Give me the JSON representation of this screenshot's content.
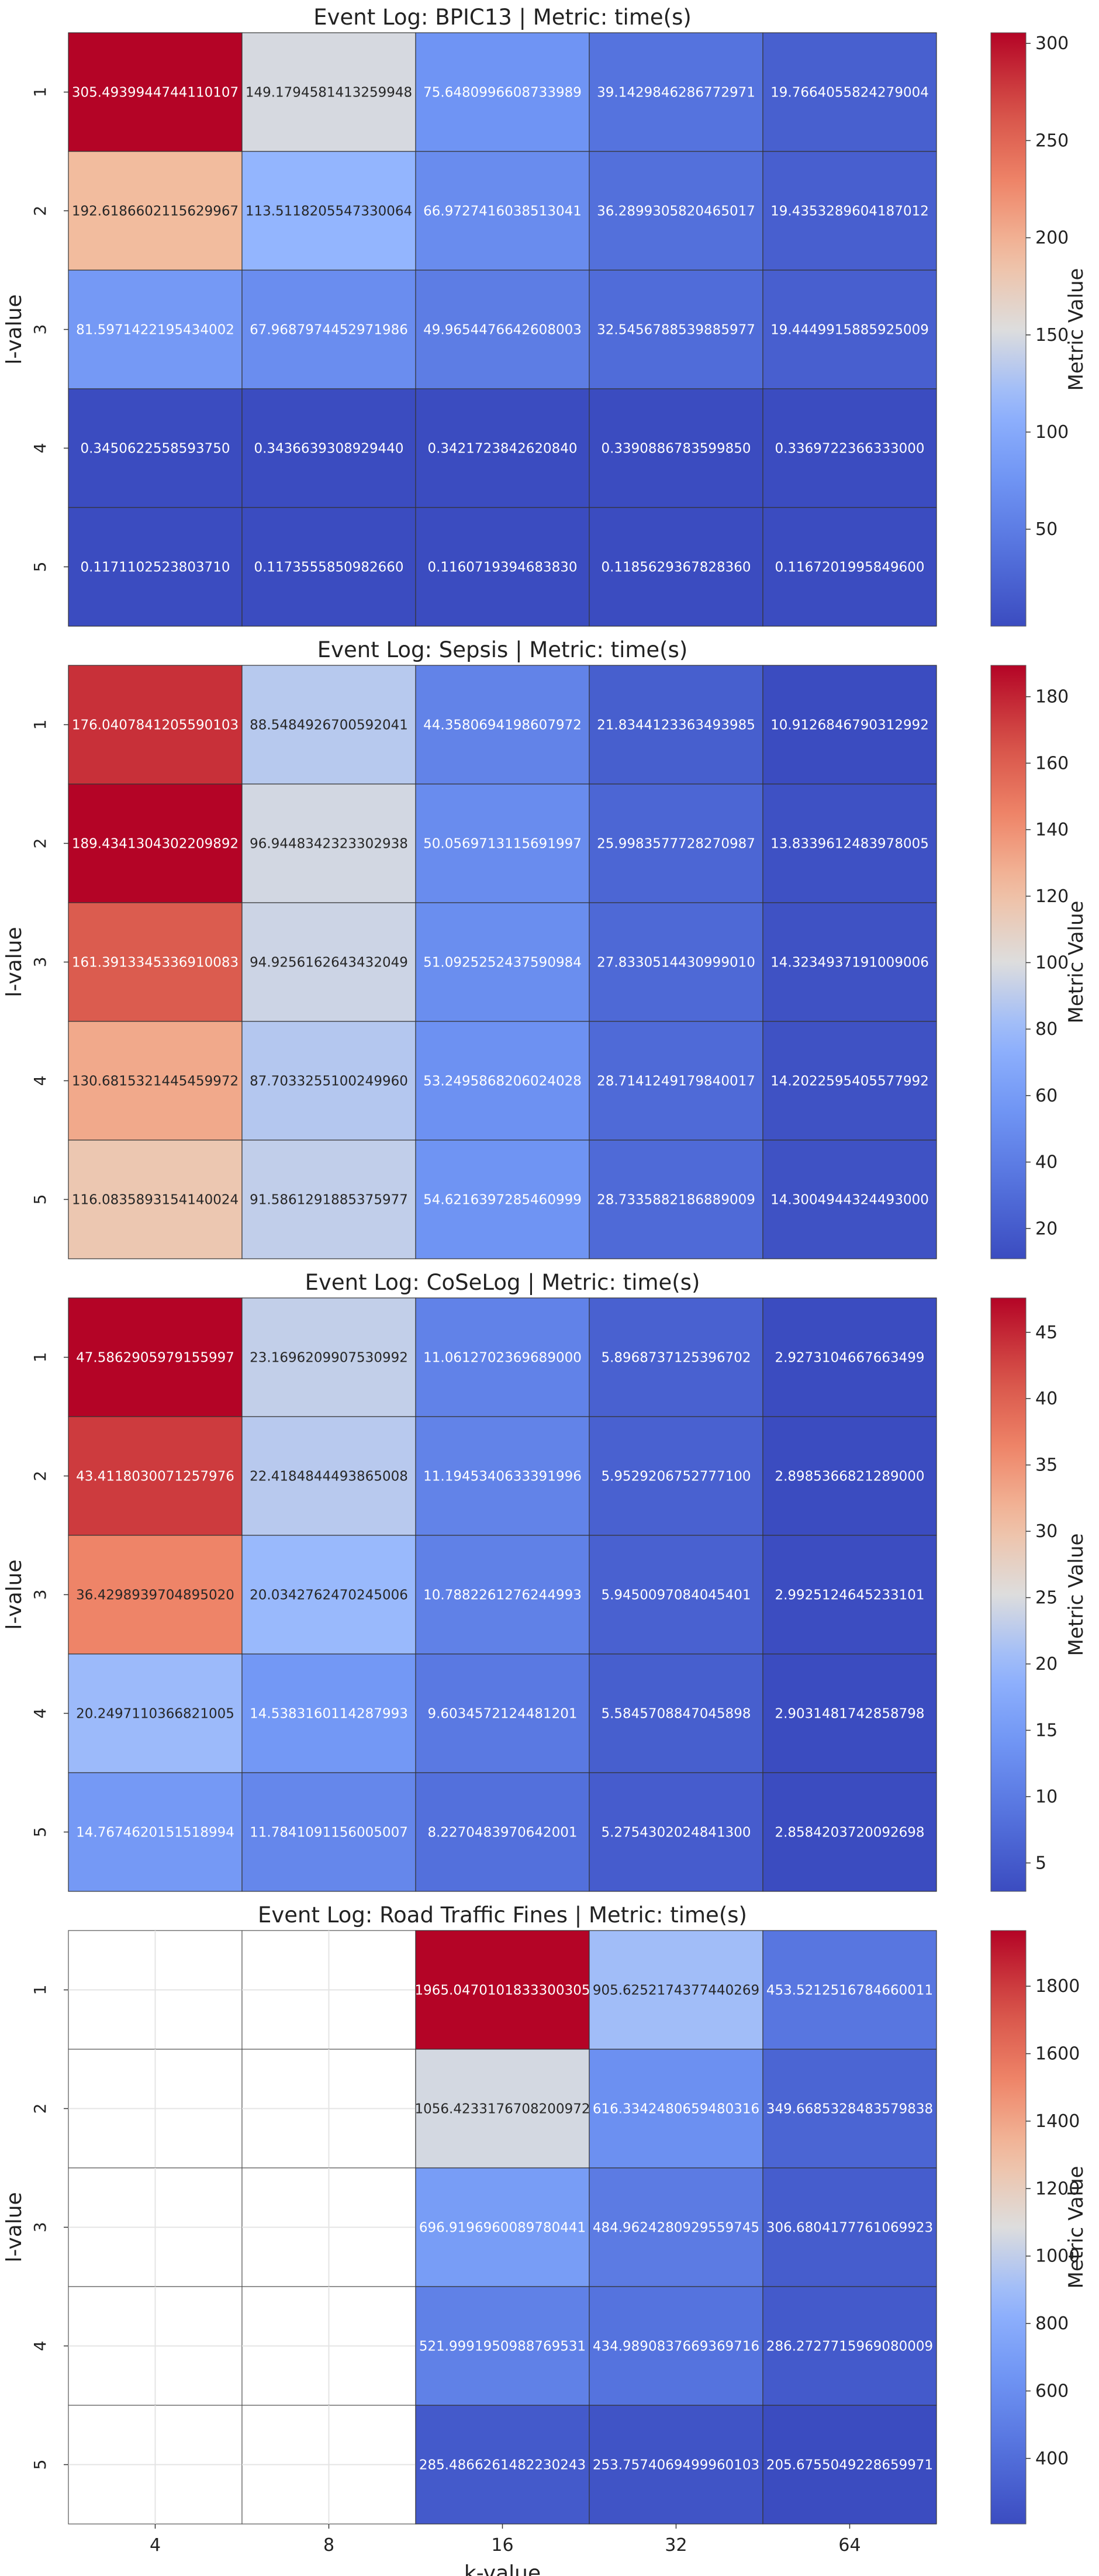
{
  "chart_data": [
    {
      "type": "heatmap",
      "title": "Event Log: BPIC13 | Metric: time(s)",
      "xlabel": "",
      "ylabel": "l-value",
      "x_categories": [
        "4",
        "8",
        "16",
        "32",
        "64"
      ],
      "y_categories": [
        "1",
        "2",
        "3",
        "4",
        "5"
      ],
      "values": [
        [
          305.493994474411,
          149.179458141326,
          75.6480996608734,
          39.1429846286773,
          19.7664055824279
        ],
        [
          192.618660211563,
          113.511820554733,
          66.9727416038513,
          36.2899305820465,
          19.4353289604187
        ],
        [
          81.5971422195434,
          67.9687974452972,
          49.9654476642608,
          32.5456788539886,
          19.4449915885925
        ],
        [
          0.345062255859375,
          0.343663930892944,
          0.342172384262084,
          0.339088678359985,
          0.3369722366333
        ],
        [
          0.117110252380371,
          0.117355585098266,
          0.116071939468383,
          0.118562936782836,
          0.11672019958496
        ]
      ],
      "labels": [
        [
          "305.4939944744110107",
          "149.1794581413259948",
          "75.6480996608733989",
          "39.1429846286772971",
          "19.7664055824279004"
        ],
        [
          "192.6186602115629967",
          "113.5118205547330064",
          "66.9727416038513041",
          "36.2899305820465017",
          "19.4353289604187012"
        ],
        [
          "81.5971422195434002",
          "67.9687974452971986",
          "49.9654476642608003",
          "32.5456788539885977",
          "19.4449915885925009"
        ],
        [
          "0.3450622558593750",
          "0.3436639308929440",
          "0.3421723842620840",
          "0.3390886783599850",
          "0.3369722366333000"
        ],
        [
          "0.1171102523803710",
          "0.1173555850982660",
          "0.1160719394683830",
          "0.1185629367828360",
          "0.1167201995849600"
        ]
      ],
      "colorbar": {
        "label": "Metric Value",
        "min": 0.116,
        "max": 305.49,
        "ticks": [
          "50",
          "100",
          "150",
          "200",
          "250",
          "300"
        ],
        "tick_values": [
          50,
          100,
          150,
          200,
          250,
          300
        ]
      }
    },
    {
      "type": "heatmap",
      "title": "Event Log: Sepsis | Metric: time(s)",
      "xlabel": "",
      "ylabel": "l-value",
      "x_categories": [
        "4",
        "8",
        "16",
        "32",
        "64"
      ],
      "y_categories": [
        "1",
        "2",
        "3",
        "4",
        "5"
      ],
      "values": [
        [
          176.040784120559,
          88.5484926700592,
          44.3580694198608,
          21.8344123363494,
          10.9126846790313
        ],
        [
          189.434130430221,
          96.9448342323303,
          50.0569713115692,
          25.9983577728271,
          13.8339612483978
        ],
        [
          161.391334533691,
          94.9256162643432,
          51.0925252437591,
          27.8330514430999,
          14.3234937191009
        ],
        [
          130.681532144546,
          87.703325510025,
          53.2495868206024,
          28.714124917984,
          14.2022595405578
        ],
        [
          116.083589315414,
          91.5861291885376,
          54.6216397285461,
          28.7335882186889,
          14.3004944324493
        ]
      ],
      "labels": [
        [
          "176.0407841205590103",
          "88.5484926700592041",
          "44.3580694198607972",
          "21.8344123363493985",
          "10.9126846790312992"
        ],
        [
          "189.4341304302209892",
          "96.9448342323302938",
          "50.0569713115691997",
          "25.9983577728270987",
          "13.8339612483978005"
        ],
        [
          "161.3913345336910083",
          "94.9256162643432049",
          "51.0925252437590984",
          "27.8330514430999010",
          "14.3234937191009006"
        ],
        [
          "130.6815321445459972",
          "87.7033255100249960",
          "53.2495868206024028",
          "28.7141249179840017",
          "14.2022595405577992"
        ],
        [
          "116.0835893154140024",
          "91.5861291885375977",
          "54.6216397285460999",
          "28.7335882186889009",
          "14.3004944324493000"
        ]
      ],
      "colorbar": {
        "label": "Metric Value",
        "min": 10.91,
        "max": 189.43,
        "ticks": [
          "20",
          "40",
          "60",
          "80",
          "100",
          "120",
          "140",
          "160",
          "180"
        ],
        "tick_values": [
          20,
          40,
          60,
          80,
          100,
          120,
          140,
          160,
          180
        ]
      }
    },
    {
      "type": "heatmap",
      "title": "Event Log: CoSeLog | Metric: time(s)",
      "xlabel": "",
      "ylabel": "l-value",
      "x_categories": [
        "4",
        "8",
        "16",
        "32",
        "64"
      ],
      "y_categories": [
        "1",
        "2",
        "3",
        "4",
        "5"
      ],
      "values": [
        [
          47.5862905979156,
          23.1696209907531,
          11.0612702369689,
          5.89687371253967,
          2.92731046676635
        ],
        [
          43.4118030071258,
          22.4184844493865,
          11.1945340633392,
          5.95292067527771,
          2.8985366821289
        ],
        [
          36.4298939704895,
          20.0342762470245,
          10.7882261276245,
          5.94500970840454,
          2.99251246452331
        ],
        [
          20.2497110366821,
          14.5383160114288,
          9.60345721244812,
          5.58457088470459,
          2.90314817428588
        ],
        [
          14.7674620151519,
          11.7841091156005,
          8.2270483970642,
          5.27543020248413,
          2.85842037200927
        ]
      ],
      "labels": [
        [
          "47.5862905979155997",
          "23.1696209907530992",
          "11.0612702369689000",
          "5.8968737125396702",
          "2.9273104667663499"
        ],
        [
          "43.4118030071257976",
          "22.4184844493865008",
          "11.1945340633391996",
          "5.9529206752777100",
          "2.8985366821289000"
        ],
        [
          "36.4298939704895020",
          "20.0342762470245006",
          "10.7882261276244993",
          "5.9450097084045401",
          "2.9925124645233101"
        ],
        [
          "20.2497110366821005",
          "14.5383160114287993",
          "9.6034572124481201",
          "5.5845708847045898",
          "2.9031481742858798"
        ],
        [
          "14.7674620151518994",
          "11.7841091156005007",
          "8.2270483970642001",
          "5.2754302024841300",
          "2.8584203720092698"
        ]
      ],
      "colorbar": {
        "label": "Metric Value",
        "min": 2.858,
        "max": 47.59,
        "ticks": [
          "5",
          "10",
          "15",
          "20",
          "25",
          "30",
          "35",
          "40",
          "45"
        ],
        "tick_values": [
          5,
          10,
          15,
          20,
          25,
          30,
          35,
          40,
          45
        ]
      }
    },
    {
      "type": "heatmap",
      "title": "Event Log: Road Traffic Fines | Metric: time(s)",
      "xlabel": "k-value",
      "ylabel": "l-value",
      "x_categories": [
        "4",
        "8",
        "16",
        "32",
        "64"
      ],
      "y_categories": [
        "1",
        "2",
        "3",
        "4",
        "5"
      ],
      "values": [
        [
          null,
          null,
          1965.04701018333,
          905.625217437744,
          453.521251678466
        ],
        [
          null,
          null,
          1056.42331767082,
          616.334248065948,
          349.668532848358
        ],
        [
          null,
          null,
          696.919696008978,
          484.962428092956,
          306.680417776107
        ],
        [
          null,
          null,
          521.999195098877,
          434.989083766937,
          286.272771596908
        ],
        [
          null,
          null,
          285.486626148223,
          253.757406949996,
          205.675504922866
        ]
      ],
      "labels": [
        [
          "",
          "",
          "1965.0470101833300305",
          "905.6252174377440269",
          "453.5212516784660011"
        ],
        [
          "",
          "",
          "1056.4233176708200972",
          "616.3342480659480316",
          "349.6685328483579838"
        ],
        [
          "",
          "",
          "696.9196960089780441",
          "484.9624280929559745",
          "306.6804177761069923"
        ],
        [
          "",
          "",
          "521.9991950988769531",
          "434.9890837669369716",
          "286.2727715969080009"
        ],
        [
          "",
          "",
          "285.4866261482230243",
          "253.7574069499960103",
          "205.6755049228659971"
        ]
      ],
      "colorbar": {
        "label": "Metric Value",
        "min": 205.68,
        "max": 1965.05,
        "ticks": [
          "400",
          "600",
          "800",
          "1000",
          "1200",
          "1400",
          "1600",
          "1800"
        ],
        "tick_values": [
          400,
          600,
          800,
          1000,
          1200,
          1400,
          1600,
          1800
        ]
      }
    }
  ]
}
